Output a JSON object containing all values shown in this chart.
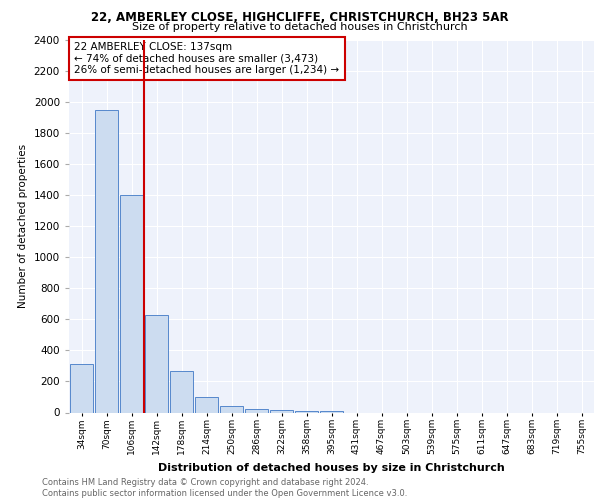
{
  "title1": "22, AMBERLEY CLOSE, HIGHCLIFFE, CHRISTCHURCH, BH23 5AR",
  "title2": "Size of property relative to detached houses in Christchurch",
  "xlabel": "Distribution of detached houses by size in Christchurch",
  "ylabel": "Number of detached properties",
  "bin_labels": [
    "34sqm",
    "70sqm",
    "106sqm",
    "142sqm",
    "178sqm",
    "214sqm",
    "250sqm",
    "286sqm",
    "322sqm",
    "358sqm",
    "395sqm",
    "431sqm",
    "467sqm",
    "503sqm",
    "539sqm",
    "575sqm",
    "611sqm",
    "647sqm",
    "683sqm",
    "719sqm",
    "755sqm"
  ],
  "bar_values": [
    310,
    1950,
    1400,
    630,
    265,
    100,
    45,
    22,
    17,
    10,
    8,
    0,
    0,
    0,
    0,
    0,
    0,
    0,
    0,
    0,
    0
  ],
  "bar_color": "#ccdcf0",
  "bar_edge_color": "#5588cc",
  "vline_color": "#cc0000",
  "vline_position": 2.5,
  "annotation_text": "22 AMBERLEY CLOSE: 137sqm\n← 74% of detached houses are smaller (3,473)\n26% of semi-detached houses are larger (1,234) →",
  "annotation_box_facecolor": "#ffffff",
  "annotation_box_edgecolor": "#cc0000",
  "ylim": [
    0,
    2400
  ],
  "yticks": [
    0,
    200,
    400,
    600,
    800,
    1000,
    1200,
    1400,
    1600,
    1800,
    2000,
    2200,
    2400
  ],
  "footer_line1": "Contains HM Land Registry data © Crown copyright and database right 2024.",
  "footer_line2": "Contains public sector information licensed under the Open Government Licence v3.0.",
  "plot_bg_color": "#eef2fb",
  "grid_color": "#ffffff",
  "title1_fontsize": 8.5,
  "title2_fontsize": 8.0,
  "xlabel_fontsize": 8.0,
  "ylabel_fontsize": 7.5,
  "xtick_fontsize": 6.5,
  "ytick_fontsize": 7.5,
  "annotation_fontsize": 7.5,
  "footer_fontsize": 6.0
}
